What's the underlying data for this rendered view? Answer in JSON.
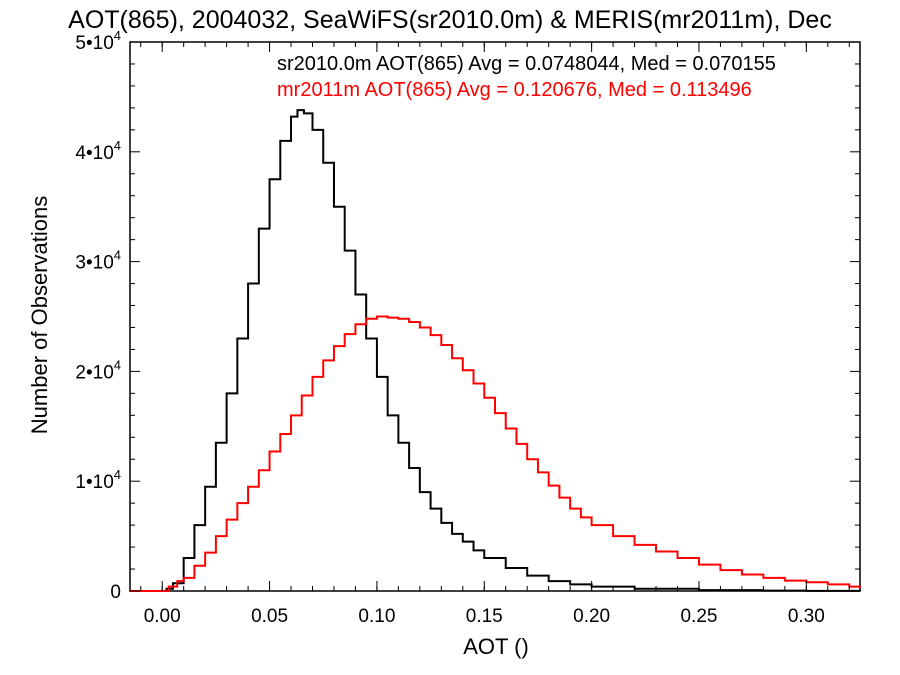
{
  "chart_data": {
    "type": "line",
    "title": "AOT(865), 2004032, SeaWiFS(sr2010.0m) & MERIS(mr2011m), Dec",
    "xlabel": "AOT ()",
    "ylabel": "Number of Observations",
    "xlim": [
      -0.015,
      0.325
    ],
    "ylim": [
      0,
      50000
    ],
    "x_ticks": [
      {
        "value": 0.0,
        "label": "0.00"
      },
      {
        "value": 0.05,
        "label": "0.05"
      },
      {
        "value": 0.1,
        "label": "0.10"
      },
      {
        "value": 0.15,
        "label": "0.15"
      },
      {
        "value": 0.2,
        "label": "0.20"
      },
      {
        "value": 0.25,
        "label": "0.25"
      },
      {
        "value": 0.3,
        "label": "0.30"
      }
    ],
    "y_ticks": [
      {
        "value": 0,
        "base": "0",
        "exp": ""
      },
      {
        "value": 10000,
        "base": "1•10",
        "exp": "4"
      },
      {
        "value": 20000,
        "base": "2•10",
        "exp": "4"
      },
      {
        "value": 30000,
        "base": "3•10",
        "exp": "4"
      },
      {
        "value": 40000,
        "base": "4•10",
        "exp": "4"
      },
      {
        "value": 50000,
        "base": "5•10",
        "exp": "4"
      }
    ],
    "legend_placement": "top-right",
    "annotations": [
      {
        "text": "sr2010.0m AOT(865) Avg = 0.0748044, Med = 0.070155",
        "color": "#000000"
      },
      {
        "text": "mr2011m AOT(865) Avg = 0.120676, Med = 0.113496",
        "color": "#ff0000"
      }
    ],
    "series": [
      {
        "color": "#000000",
        "step": true,
        "points": [
          [
            -0.015,
            0
          ],
          [
            0.0,
            0
          ],
          [
            0.002,
            200
          ],
          [
            0.005,
            700
          ],
          [
            0.01,
            3000
          ],
          [
            0.015,
            6000
          ],
          [
            0.02,
            9500
          ],
          [
            0.025,
            13500
          ],
          [
            0.03,
            18000
          ],
          [
            0.035,
            23000
          ],
          [
            0.04,
            28000
          ],
          [
            0.045,
            33000
          ],
          [
            0.05,
            37500
          ],
          [
            0.055,
            41000
          ],
          [
            0.06,
            43200
          ],
          [
            0.063,
            43800
          ],
          [
            0.066,
            43500
          ],
          [
            0.07,
            42000
          ],
          [
            0.075,
            39000
          ],
          [
            0.08,
            35000
          ],
          [
            0.085,
            31000
          ],
          [
            0.09,
            27000
          ],
          [
            0.095,
            23000
          ],
          [
            0.1,
            19500
          ],
          [
            0.105,
            16000
          ],
          [
            0.11,
            13500
          ],
          [
            0.115,
            11200
          ],
          [
            0.12,
            9000
          ],
          [
            0.125,
            7500
          ],
          [
            0.13,
            6200
          ],
          [
            0.135,
            5200
          ],
          [
            0.14,
            4500
          ],
          [
            0.145,
            3700
          ],
          [
            0.15,
            3000
          ],
          [
            0.16,
            2100
          ],
          [
            0.17,
            1400
          ],
          [
            0.18,
            900
          ],
          [
            0.19,
            600
          ],
          [
            0.2,
            400
          ],
          [
            0.22,
            200
          ],
          [
            0.25,
            80
          ],
          [
            0.28,
            30
          ],
          [
            0.3,
            10
          ],
          [
            0.325,
            0
          ]
        ]
      },
      {
        "color": "#ff0000",
        "step": true,
        "points": [
          [
            -0.015,
            0
          ],
          [
            0.0,
            0
          ],
          [
            0.003,
            400
          ],
          [
            0.007,
            900
          ],
          [
            0.01,
            1200
          ],
          [
            0.015,
            2300
          ],
          [
            0.02,
            3500
          ],
          [
            0.025,
            5000
          ],
          [
            0.03,
            6500
          ],
          [
            0.035,
            8000
          ],
          [
            0.04,
            9500
          ],
          [
            0.045,
            11000
          ],
          [
            0.05,
            12700
          ],
          [
            0.055,
            14300
          ],
          [
            0.06,
            16000
          ],
          [
            0.065,
            17800
          ],
          [
            0.07,
            19500
          ],
          [
            0.075,
            21000
          ],
          [
            0.08,
            22300
          ],
          [
            0.085,
            23400
          ],
          [
            0.09,
            24300
          ],
          [
            0.095,
            24800
          ],
          [
            0.1,
            25000
          ],
          [
            0.105,
            24900
          ],
          [
            0.11,
            24800
          ],
          [
            0.115,
            24500
          ],
          [
            0.12,
            24000
          ],
          [
            0.125,
            23300
          ],
          [
            0.13,
            22400
          ],
          [
            0.135,
            21200
          ],
          [
            0.14,
            20100
          ],
          [
            0.145,
            18900
          ],
          [
            0.15,
            17600
          ],
          [
            0.155,
            16200
          ],
          [
            0.16,
            14800
          ],
          [
            0.165,
            13400
          ],
          [
            0.17,
            12000
          ],
          [
            0.175,
            10800
          ],
          [
            0.18,
            9600
          ],
          [
            0.185,
            8500
          ],
          [
            0.19,
            7500
          ],
          [
            0.195,
            6700
          ],
          [
            0.2,
            6000
          ],
          [
            0.21,
            5000
          ],
          [
            0.22,
            4200
          ],
          [
            0.23,
            3600
          ],
          [
            0.24,
            3000
          ],
          [
            0.25,
            2400
          ],
          [
            0.26,
            1900
          ],
          [
            0.27,
            1500
          ],
          [
            0.28,
            1200
          ],
          [
            0.29,
            950
          ],
          [
            0.3,
            800
          ],
          [
            0.31,
            600
          ],
          [
            0.32,
            400
          ],
          [
            0.325,
            300
          ]
        ]
      }
    ]
  }
}
